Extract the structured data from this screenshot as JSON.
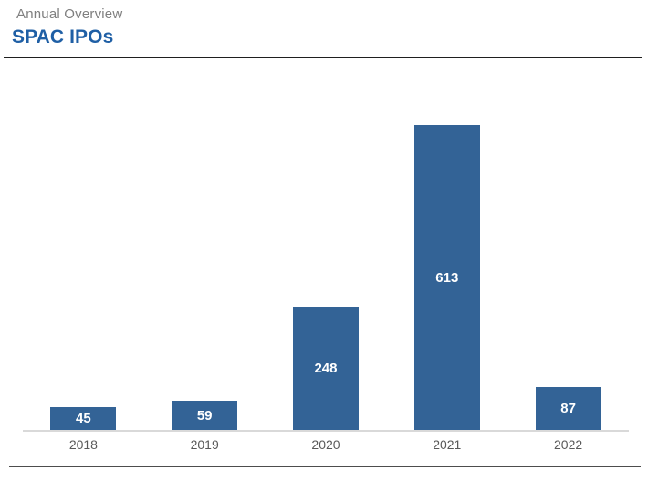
{
  "header": {
    "eyebrow": "Annual Overview",
    "title": "SPAC IPOs"
  },
  "colors": {
    "bar": "#336396",
    "title_blue": "#1F5FA5",
    "eyebrow_gray": "#7F7F7F",
    "axis_line": "#D9D9D9",
    "value_label": "#FFFFFF",
    "tick_label": "#595959",
    "top_rule": "#1F1F1F",
    "bottom_rule": "#4D4D4D"
  },
  "chart_data": {
    "type": "bar",
    "title": "SPAC IPOs",
    "subtitle": "Annual Overview",
    "categories": [
      "2018",
      "2019",
      "2020",
      "2021",
      "2022"
    ],
    "values": [
      45,
      59,
      248,
      613,
      87
    ],
    "xlabel": "",
    "ylabel": "",
    "ylim": [
      0,
      700
    ],
    "grid": false,
    "legend": "none",
    "data_labels": "inside-center",
    "data_label_color": "#FFFFFF"
  }
}
